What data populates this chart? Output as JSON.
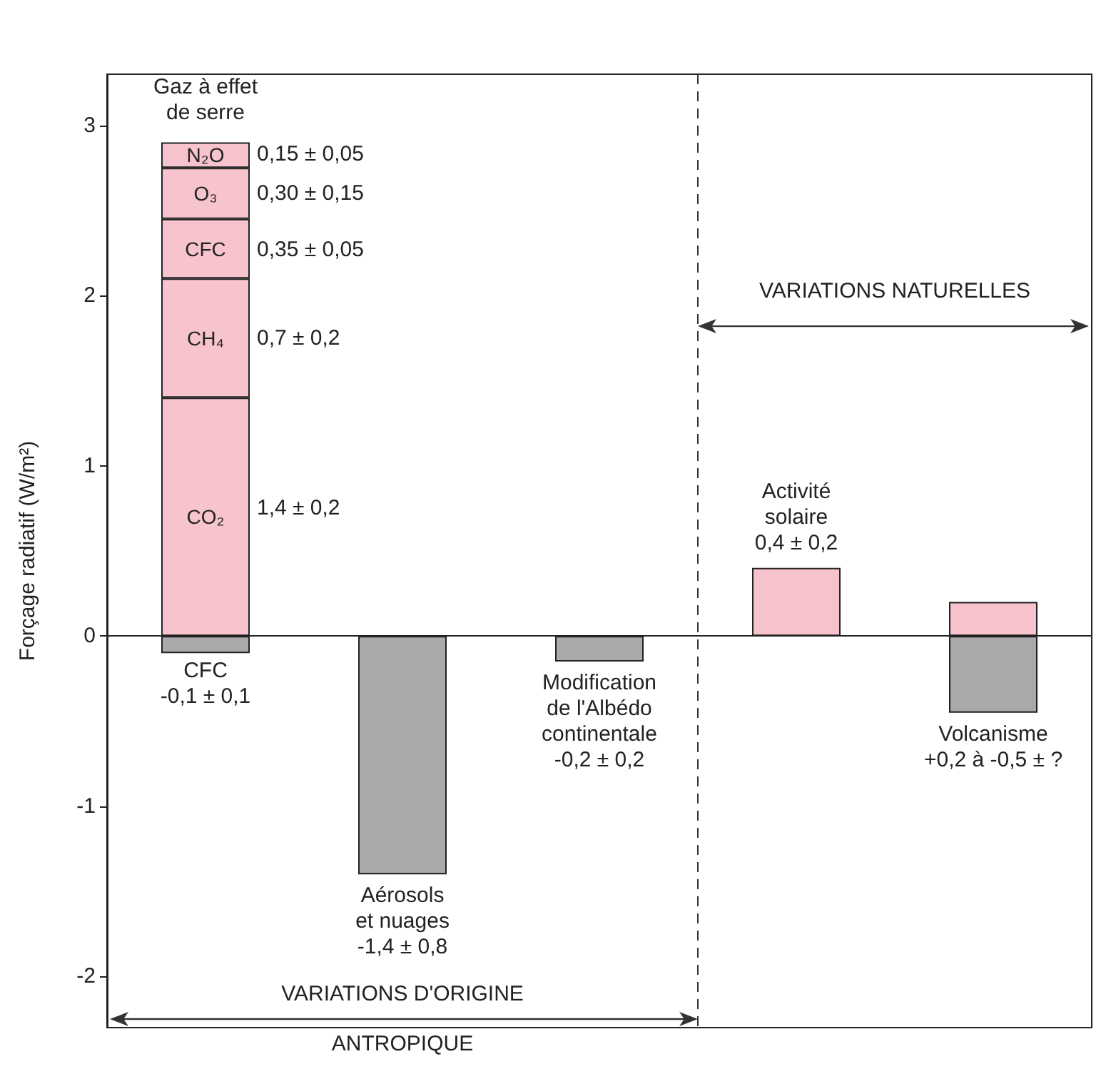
{
  "chart_data": {
    "type": "bar",
    "stacked": true,
    "ylabel": "Forçage radiatif (W/m²)",
    "categories": [
      null,
      null,
      null,
      null,
      null
    ],
    "series": [
      {
        "name": "CO₂",
        "color": "#f7c3cc",
        "values": [
          1.4,
          null,
          null,
          null,
          null
        ]
      },
      {
        "name": "CH₄",
        "color": "#f7c3cc",
        "values": [
          0.7,
          null,
          null,
          null,
          null
        ]
      },
      {
        "name": "CFC",
        "color": "#f7c3cc",
        "values": [
          0.35,
          null,
          null,
          null,
          null
        ]
      },
      {
        "name": "O₃",
        "color": "#f7c3cc",
        "values": [
          0.3,
          null,
          null,
          null,
          null
        ]
      },
      {
        "name": "N₂O",
        "color": "#f7c3cc",
        "values": [
          0.15,
          null,
          null,
          null,
          null
        ]
      },
      {
        "color": "#aaaaaa",
        "values": [
          -0.1,
          -1.4,
          -0.15,
          null,
          null
        ]
      },
      {
        "color": "#f6c2cb",
        "values": [
          null,
          null,
          null,
          0.4,
          0.2
        ]
      },
      {
        "color": "#a9a9a9",
        "values": [
          null,
          null,
          null,
          null,
          -0.45
        ]
      }
    ],
    "ylim": [
      -2.3,
      3.3
    ],
    "yticks": [
      -2,
      -1,
      0,
      1,
      2,
      3
    ],
    "tick_labels": "y",
    "grid": false,
    "legend": false,
    "annotations": [
      "Gaz à effet\nde serre",
      "0,15 ± 0,05",
      "0,30 ± 0,15",
      "0,35 ± 0,05",
      "0,7 ± 0,2",
      "1,4 ± 0,2",
      "CFC\n-0,1 ± 0,1",
      "Aérosols\net nuages\n-1,4 ± 0,8",
      "Modification\nde l'Albédo\ncontinentale\n-0,2 ± 0,2",
      "Activité\nsolaire\n0,4 ± 0,2",
      "Volcanisme\n+0,2 à -0,5 ± ?",
      "VARIATIONS NATURELLES",
      "VARIATIONS D'ORIGINE",
      "ANTROPIQUE"
    ]
  }
}
